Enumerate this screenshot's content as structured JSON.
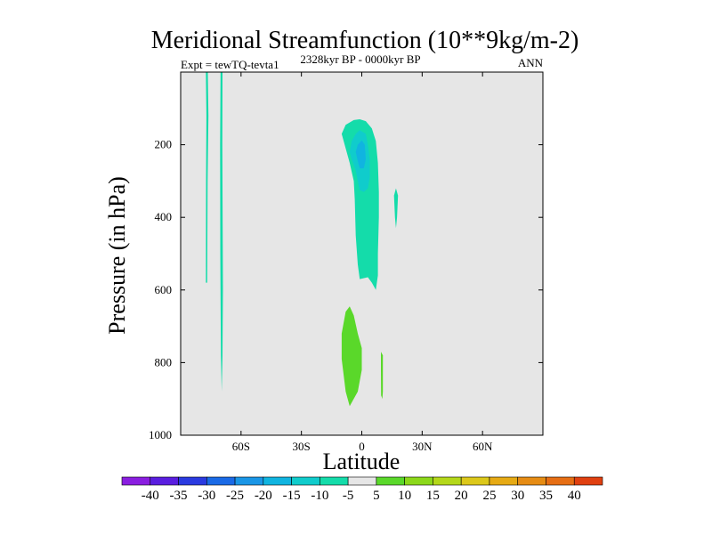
{
  "chart_data": {
    "type": "heatmap",
    "title": "Meridional Streamfunction (10**9kg/m-2)",
    "left_subtitle": "Expt = tewTQ-tevta1",
    "center_subtitle": "2328kyr BP - 0000kyr BP",
    "right_subtitle": "ANN",
    "xlabel": "Latitude",
    "ylabel": "Pressure (in hPa)",
    "xlim": [
      -90,
      90
    ],
    "ylim": [
      1000,
      0
    ],
    "x_ticks": [
      {
        "value": -60,
        "label": "60S"
      },
      {
        "value": -30,
        "label": "30S"
      },
      {
        "value": 0,
        "label": "0"
      },
      {
        "value": 30,
        "label": "30N"
      },
      {
        "value": 60,
        "label": "60N"
      }
    ],
    "y_ticks": [
      {
        "value": 200,
        "label": "200"
      },
      {
        "value": 400,
        "label": "400"
      },
      {
        "value": 600,
        "label": "600"
      },
      {
        "value": 800,
        "label": "800"
      },
      {
        "value": 1000,
        "label": "1000"
      }
    ],
    "background_color": "#e6e6e6",
    "colorbar": {
      "labels": [
        "-40",
        "-35",
        "-30",
        "-25",
        "-20",
        "-15",
        "-10",
        "-5",
        "5",
        "10",
        "15",
        "20",
        "25",
        "30",
        "35",
        "40"
      ],
      "colors": [
        "#8a1ee0",
        "#5a1ee0",
        "#2a3ae0",
        "#1a6ae6",
        "#1a96e6",
        "#10b4e0",
        "#10cccc",
        "#14dcaa",
        "#e6e6e6",
        "#5ad82a",
        "#8cd81a",
        "#b4d81a",
        "#dcc81a",
        "#e6aa14",
        "#e68c14",
        "#e66e14",
        "#e04010"
      ]
    },
    "regions": [
      {
        "name": "narrow-band-75S",
        "level": "-5",
        "color": "#14dcaa",
        "points": [
          [
            -77.5,
            0
          ],
          [
            -76.5,
            0
          ],
          [
            -76.2,
            120
          ],
          [
            -76.6,
            300
          ],
          [
            -76.8,
            580
          ],
          [
            -77.5,
            580
          ],
          [
            -77.4,
            300
          ],
          [
            -77.2,
            120
          ]
        ]
      },
      {
        "name": "narrow-band-70S",
        "level": "-5",
        "color": "#14dcaa",
        "points": [
          [
            -70.2,
            0
          ],
          [
            -69.2,
            0
          ],
          [
            -69.3,
            200
          ],
          [
            -69.0,
            600
          ],
          [
            -69.2,
            780
          ],
          [
            -69.6,
            880
          ],
          [
            -70.0,
            780
          ],
          [
            -70.3,
            500
          ],
          [
            -70.4,
            200
          ]
        ]
      },
      {
        "name": "upper-cell-edge",
        "level": "-5",
        "color": "#14dcaa",
        "points": [
          [
            -10,
            170
          ],
          [
            -8,
            145
          ],
          [
            -4,
            132
          ],
          [
            -1,
            130
          ],
          [
            2,
            135
          ],
          [
            5,
            155
          ],
          [
            7,
            190
          ],
          [
            8,
            250
          ],
          [
            8.5,
            330
          ],
          [
            8.5,
            400
          ],
          [
            8,
            500
          ],
          [
            8,
            560
          ],
          [
            7,
            600
          ],
          [
            5,
            580
          ],
          [
            3,
            565
          ],
          [
            -1,
            570
          ],
          [
            -2,
            530
          ],
          [
            -3,
            450
          ],
          [
            -3.5,
            350
          ],
          [
            -4,
            300
          ],
          [
            -6,
            250
          ],
          [
            -8,
            210
          ]
        ]
      },
      {
        "name": "upper-cell-inner",
        "level": "-10",
        "color": "#10cccc",
        "points": [
          [
            -6,
            220
          ],
          [
            -5,
            190
          ],
          [
            -3,
            170
          ],
          [
            -1,
            160
          ],
          [
            2,
            170
          ],
          [
            3,
            200
          ],
          [
            4,
            240
          ],
          [
            4,
            290
          ],
          [
            3,
            320
          ],
          [
            1,
            330
          ],
          [
            -1,
            325
          ],
          [
            -2,
            300
          ],
          [
            -3,
            270
          ],
          [
            -5,
            240
          ]
        ]
      },
      {
        "name": "upper-cell-core",
        "level": "-15",
        "color": "#10b4e0",
        "points": [
          [
            -3,
            220
          ],
          [
            -2,
            200
          ],
          [
            0,
            188
          ],
          [
            1.5,
            200
          ],
          [
            2,
            240
          ],
          [
            1,
            265
          ],
          [
            -1,
            265
          ],
          [
            -2,
            245
          ]
        ]
      },
      {
        "name": "small-band-16N",
        "level": "-5",
        "color": "#14dcaa",
        "points": [
          [
            16,
            340
          ],
          [
            17,
            320
          ],
          [
            18,
            340
          ],
          [
            17.5,
            400
          ],
          [
            17,
            430
          ],
          [
            16.5,
            400
          ]
        ]
      },
      {
        "name": "lower-cell",
        "level": "5",
        "color": "#5ad82a",
        "points": [
          [
            -8,
            660
          ],
          [
            -6,
            645
          ],
          [
            -4,
            670
          ],
          [
            -2,
            720
          ],
          [
            0,
            760
          ],
          [
            0,
            820
          ],
          [
            -2,
            880
          ],
          [
            -6,
            920
          ],
          [
            -8,
            880
          ],
          [
            -10,
            790
          ],
          [
            -10,
            720
          ]
        ]
      },
      {
        "name": "lower-band-10N",
        "level": "5",
        "color": "#5ad82a",
        "points": [
          [
            9.5,
            770
          ],
          [
            10.5,
            780
          ],
          [
            10.5,
            880
          ],
          [
            10.2,
            900
          ],
          [
            9.6,
            890
          ],
          [
            9.5,
            820
          ]
        ]
      }
    ]
  }
}
